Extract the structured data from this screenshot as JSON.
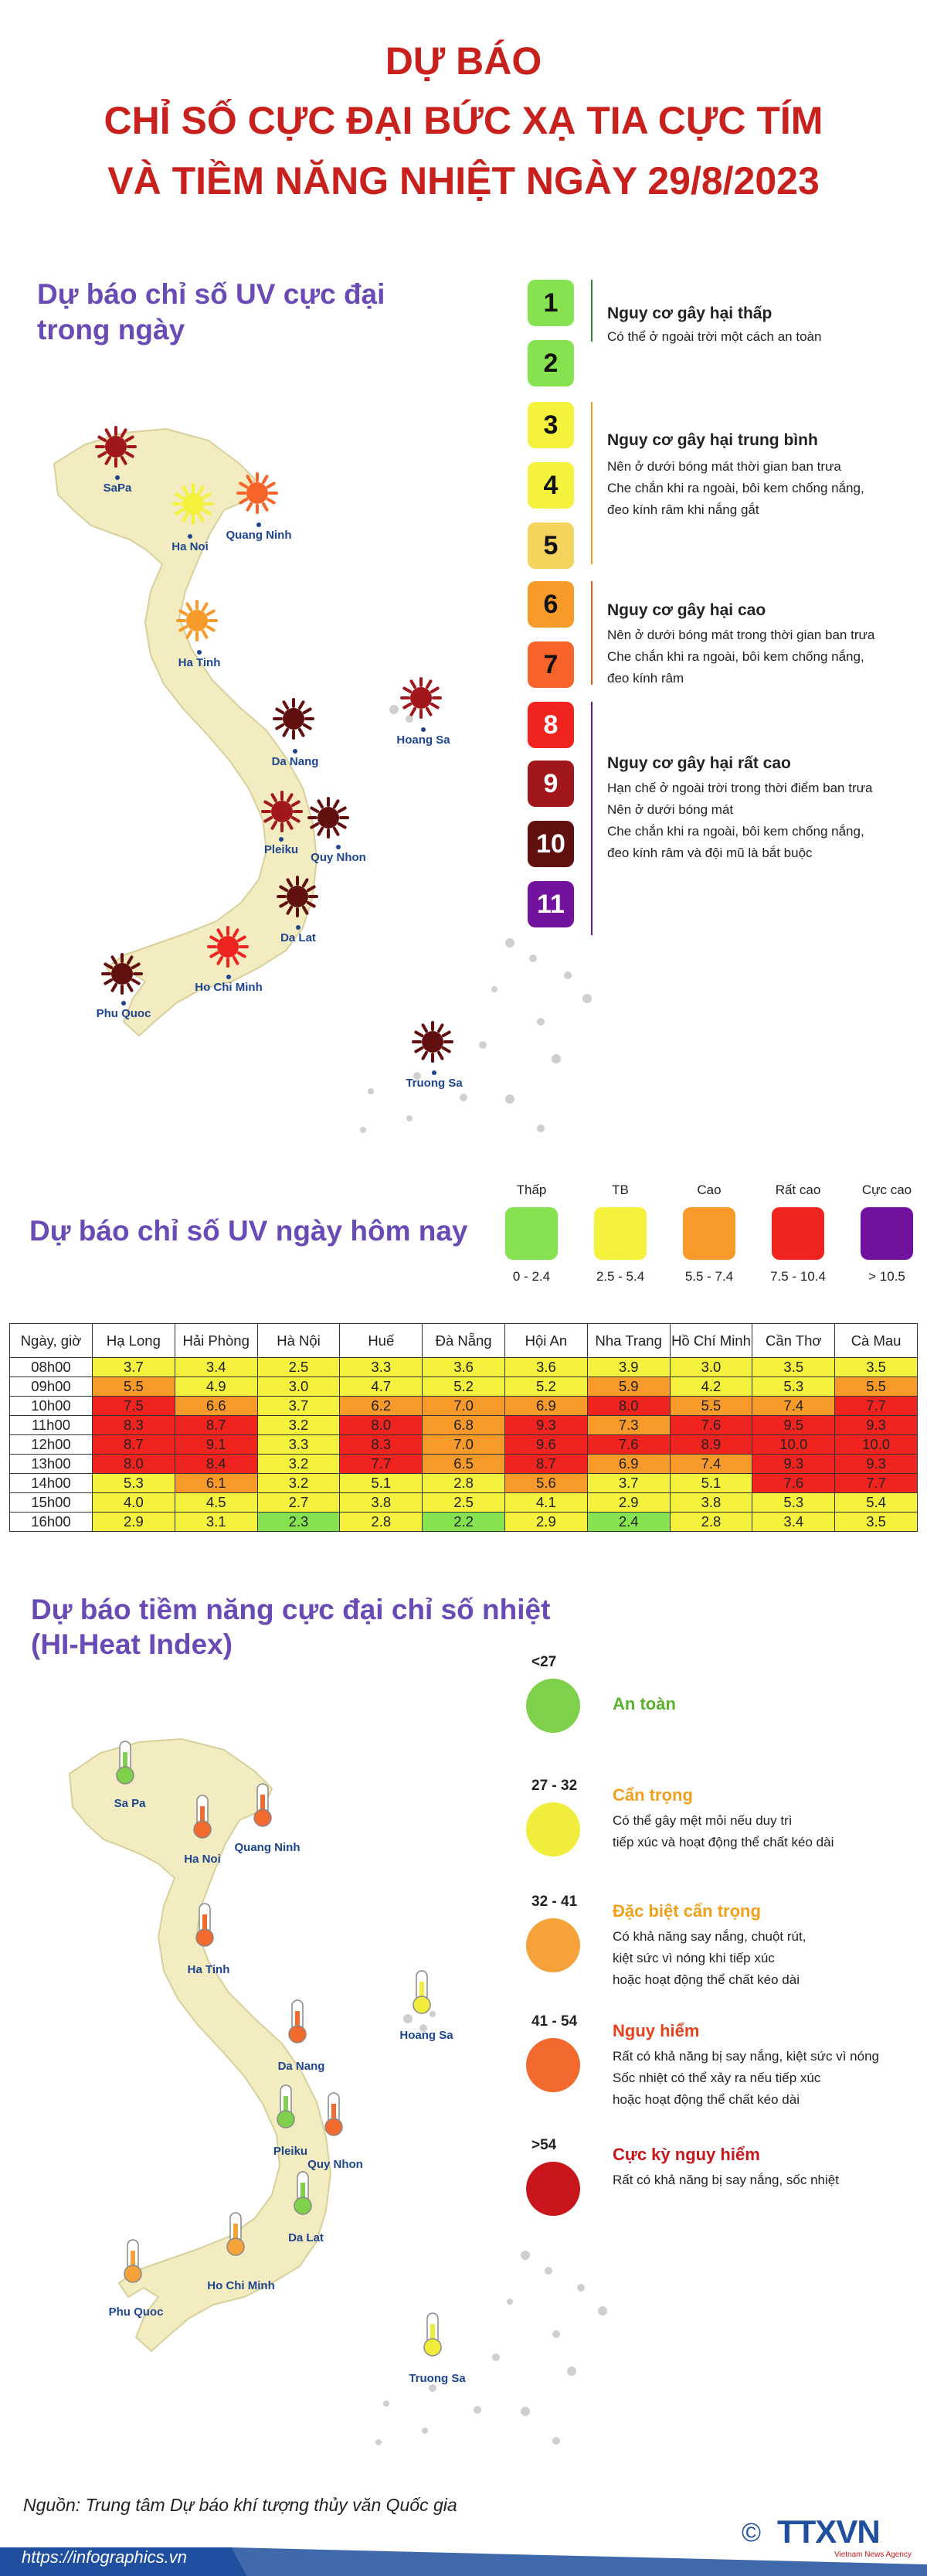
{
  "header": {
    "line1": "DỰ BÁO",
    "line2": "CHỈ SỐ CỰC ĐẠI BỨC XẠ TIA CỰC TÍM",
    "line3": "VÀ TIỀM NĂNG NHIỆT NGÀY 29/8/2023"
  },
  "uv_max": {
    "title": "Dự báo chỉ số UV cực đại trong ngày",
    "cities": [
      "SaPa",
      "Ha Noi",
      "Quang Ninh",
      "Ha Tinh",
      "Hoang Sa",
      "Da Nang",
      "Pleiku",
      "Quy Nhon",
      "Da Lat",
      "Ho Chi Minh",
      "Phu Quoc",
      "Truong Sa"
    ],
    "scale": [
      "1",
      "2",
      "3",
      "4",
      "5",
      "6",
      "7",
      "8",
      "9",
      "10",
      "11"
    ],
    "scale_colors": [
      "#86e24f",
      "#86e24f",
      "#f4f23c",
      "#f4f23c",
      "#f4d45c",
      "#f79a2a",
      "#f7642a",
      "#f0231f",
      "#a2171b",
      "#62100f",
      "#7412a0"
    ],
    "categories": [
      {
        "title": "Nguy cơ gây hại thấp",
        "color": "#2f8a2f",
        "lines": [
          "Có thể ở ngoài trời một cách an toàn"
        ]
      },
      {
        "title": "Nguy cơ gây hại trung bình",
        "color": "#eca012",
        "lines": [
          "Nên ở dưới bóng mát thời gian ban trưa",
          "Che chắn khi ra ngoài, bôi kem chống nắng,",
          "đeo kính râm khi nắng gắt"
        ]
      },
      {
        "title": "Nguy cơ gây hại cao",
        "color": "#ec5a14",
        "lines": [
          "Nên ở dưới bóng mát trong thời gian ban trưa",
          "Che chắn khi ra ngoài, bôi kem chống nắng,",
          "đeo kính râm"
        ]
      },
      {
        "title": "Nguy cơ gây hại rất cao",
        "color": "#6a1790",
        "lines": [
          "Hạn chế ở ngoài trời trong thời điểm ban trưa",
          "Nên ở dưới bóng mát",
          "Che chắn khi ra ngoài, bôi kem chống nắng,",
          "đeo kính râm và đội mũ là bắt buộc"
        ]
      }
    ]
  },
  "uv_today": {
    "title": "Dự báo chỉ số UV ngày hôm nay",
    "legend": [
      {
        "label": "Thấp",
        "range": "0 - 2.4",
        "color": "#86e24f"
      },
      {
        "label": "TB",
        "range": "2.5 - 5.4",
        "color": "#f4f23c"
      },
      {
        "label": "Cao",
        "range": "5.5 - 7.4",
        "color": "#f79a2a"
      },
      {
        "label": "Rất cao",
        "range": "7.5 - 10.4",
        "color": "#f0231f"
      },
      {
        "label": "Cực cao",
        "range": "> 10.5",
        "color": "#7412a0"
      }
    ]
  },
  "uv_table": {
    "corner": "Ngày, giờ",
    "columns": [
      "Hạ Long",
      "Hải Phòng",
      "Hà Nội",
      "Huế",
      "Đà Nẵng",
      "Hội An",
      "Nha Trang",
      "Hồ Chí Minh",
      "Cần Thơ",
      "Cà Mau"
    ],
    "rows": [
      {
        "hour": "08h00",
        "values": [
          "3.7",
          "3.4",
          "2.5",
          "3.3",
          "3.6",
          "3.6",
          "3.9",
          "3.0",
          "3.5",
          "3.5"
        ]
      },
      {
        "hour": "09h00",
        "values": [
          "5.5",
          "4.9",
          "3.0",
          "4.7",
          "5.2",
          "5.2",
          "5.9",
          "4.2",
          "5.3",
          "5.5"
        ]
      },
      {
        "hour": "10h00",
        "values": [
          "7.5",
          "6.6",
          "3.7",
          "6.2",
          "7.0",
          "6.9",
          "8.0",
          "5.5",
          "7.4",
          "7.7"
        ]
      },
      {
        "hour": "11h00",
        "values": [
          "8.3",
          "8.7",
          "3.2",
          "8.0",
          "6.8",
          "9.3",
          "7.3",
          "7.6",
          "9.5",
          "9.3"
        ]
      },
      {
        "hour": "12h00",
        "values": [
          "8.7",
          "9.1",
          "3.3",
          "8.3",
          "7.0",
          "9.6",
          "7.6",
          "8.9",
          "10.0",
          "10.0"
        ]
      },
      {
        "hour": "13h00",
        "values": [
          "8.0",
          "8.4",
          "3.2",
          "7.7",
          "6.5",
          "8.7",
          "6.9",
          "7.4",
          "9.3",
          "9.3"
        ]
      },
      {
        "hour": "14h00",
        "values": [
          "5.3",
          "6.1",
          "3.2",
          "5.1",
          "2.8",
          "5.6",
          "3.7",
          "5.1",
          "7.6",
          "7.7"
        ]
      },
      {
        "hour": "15h00",
        "values": [
          "4.0",
          "4.5",
          "2.7",
          "3.8",
          "2.5",
          "4.1",
          "2.9",
          "3.8",
          "5.3",
          "5.4"
        ]
      },
      {
        "hour": "16h00",
        "values": [
          "2.9",
          "3.1",
          "2.3",
          "2.8",
          "2.2",
          "2.9",
          "2.4",
          "2.8",
          "3.4",
          "3.5"
        ]
      }
    ]
  },
  "heat_index": {
    "title_line1": "Dự báo tiềm năng cực đại chỉ số nhiệt",
    "title_line2": "(HI-Heat Index)",
    "cities": [
      "Sa Pa",
      "Ha Noi",
      "Quang Ninh",
      "Ha Tinh",
      "Hoang Sa",
      "Da Nang",
      "Pleiku",
      "Quy Nhon",
      "Da Lat",
      "Ho Chi Minh",
      "Phu Quoc",
      "Truong Sa"
    ],
    "levels": [
      {
        "range": "<27",
        "title": "An toàn",
        "color": "#7fd04b",
        "title_color": "#58b22c",
        "lines": []
      },
      {
        "range": "27 - 32",
        "title": "Cẩn trọng",
        "color": "#f1ed3c",
        "title_color": "#f0a01c",
        "lines": [
          "Có thể gây mệt mỏi nếu duy trì",
          "tiếp xúc và hoạt động thể chất kéo dài"
        ]
      },
      {
        "range": "32 - 41",
        "title": "Đặc biệt cẩn trọng",
        "color": "#f5a23a",
        "title_color": "#f0a01c",
        "lines": [
          "Có khả năng say nắng, chuột rút,",
          "kiệt sức vì nóng khi tiếp xúc",
          "hoặc hoạt động thể chất kéo dài"
        ]
      },
      {
        "range": "41 - 54",
        "title": "Nguy hiểm",
        "color": "#f26a2e",
        "title_color": "#e8421c",
        "lines": [
          "Rất có khả năng bị say nắng, kiệt sức vì nóng",
          "Sốc nhiệt có thể xảy ra nếu tiếp xúc",
          "hoặc hoạt động thể chất kéo dài"
        ]
      },
      {
        "range": ">54",
        "title": "Cực kỳ nguy hiểm",
        "color": "#c8161c",
        "title_color": "#c8161c",
        "lines": [
          "Rất có khả năng bị say nắng, sốc nhiệt"
        ]
      }
    ]
  },
  "footer": {
    "source": "Nguồn: Trung tâm Dự báo khí tượng thủy văn Quốc gia",
    "url": "https://infographics.vn",
    "logo": "TTXVN",
    "logo_sub": "Vietnam News Agency",
    "copyright": "©"
  },
  "colors": {
    "title_red": "#c8201c",
    "section_purple": "#6a4bb5",
    "map_fill": "#f3ecc0",
    "footer_blue": "#1f4f9e"
  }
}
